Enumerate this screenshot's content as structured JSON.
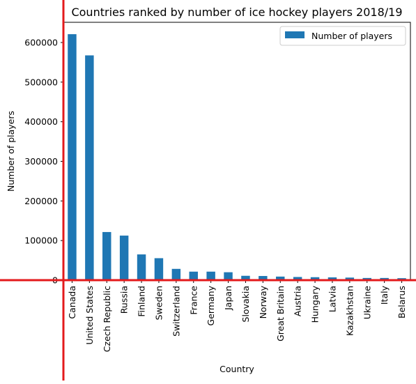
{
  "colors": {
    "bar": "#1f77b4",
    "overlay_line": "#e31a1c",
    "axis": "#000000",
    "legend_border": "#cccccc"
  },
  "chart_data": {
    "type": "bar",
    "title": "Countries ranked by number of ice hockey players 2018/19",
    "xlabel": "Country",
    "ylabel": "Number of players",
    "legend": {
      "entries": [
        "Number of players"
      ],
      "position": "top-right"
    },
    "categories": [
      "Canada",
      "United States",
      "Czech Republic",
      "Russia",
      "Finland",
      "Sweden",
      "Switzerland",
      "France",
      "Germany",
      "Japan",
      "Slovakia",
      "Norway",
      "Great Britain",
      "Austria",
      "Hungary",
      "Latvia",
      "Kazakhstan",
      "Ukraine",
      "Italy",
      "Belarus"
    ],
    "series": [
      {
        "name": "Number of players",
        "values": [
          621000,
          567500,
          121500,
          112500,
          65000,
          55500,
          28500,
          21500,
          21500,
          20000,
          11000,
          10500,
          9000,
          8000,
          7500,
          7000,
          6500,
          5500,
          5500,
          5000
        ]
      }
    ],
    "ylim": [
      0,
      651000
    ],
    "yticks": [
      0,
      100000,
      200000,
      300000,
      400000,
      500000,
      600000
    ],
    "grid": false
  }
}
